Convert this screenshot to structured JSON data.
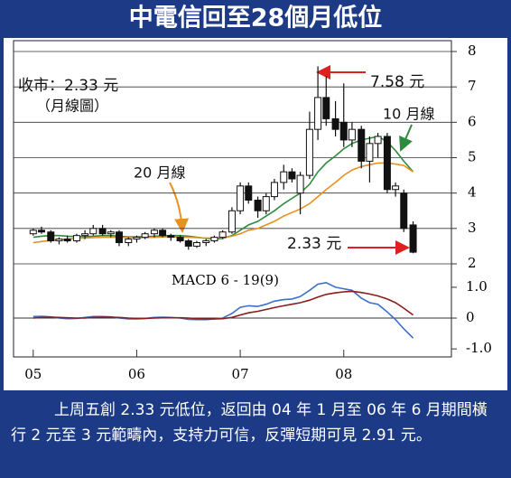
{
  "title": "中電信回至28個月低位",
  "chart_data": [
    {
      "type": "candlestick",
      "annotations": [
        "收市：2.33 元",
        "（月線圖）",
        "7.58 元",
        "10 月線",
        "20 月線",
        "2.33 元"
      ],
      "x": [
        2005,
        2005.08,
        2005.17,
        2005.25,
        2005.33,
        2005.42,
        2005.5,
        2005.58,
        2005.67,
        2005.75,
        2005.83,
        2005.92,
        2006,
        2006.08,
        2006.17,
        2006.25,
        2006.33,
        2006.42,
        2006.5,
        2006.58,
        2006.67,
        2006.75,
        2006.83,
        2006.92,
        2007,
        2007.08,
        2007.17,
        2007.25,
        2007.33,
        2007.42,
        2007.5,
        2007.58,
        2007.67,
        2007.75,
        2007.83,
        2007.92,
        2008,
        2008.08,
        2008.17,
        2008.25,
        2008.33,
        2008.42,
        2008.5,
        2008.58,
        2008.67
      ],
      "open": [
        2.85,
        2.95,
        2.9,
        2.65,
        2.7,
        2.65,
        2.8,
        2.85,
        3.0,
        2.85,
        2.9,
        2.6,
        2.7,
        2.75,
        2.85,
        2.95,
        2.8,
        2.75,
        2.65,
        2.5,
        2.6,
        2.65,
        2.75,
        2.9,
        3.5,
        4.2,
        3.8,
        3.5,
        3.9,
        4.3,
        4.6,
        4.0,
        4.5,
        5.8,
        6.7,
        6.1,
        6.0,
        5.5,
        5.8,
        4.9,
        5.4,
        5.6,
        4.1,
        4.0,
        3.1
      ],
      "high": [
        3.0,
        3.05,
        2.95,
        2.75,
        2.8,
        2.85,
        2.95,
        3.1,
        3.1,
        2.95,
        2.95,
        2.75,
        2.8,
        2.9,
        3.0,
        3.0,
        2.85,
        2.8,
        2.7,
        2.65,
        2.7,
        2.8,
        2.95,
        3.6,
        4.3,
        4.3,
        3.9,
        4.0,
        4.4,
        4.8,
        4.7,
        4.6,
        6.3,
        7.58,
        7.3,
        6.6,
        7.1,
        6.0,
        5.9,
        5.6,
        5.7,
        5.7,
        4.3,
        4.1,
        3.2
      ],
      "low": [
        2.8,
        2.85,
        2.6,
        2.55,
        2.6,
        2.6,
        2.7,
        2.8,
        2.8,
        2.75,
        2.5,
        2.5,
        2.6,
        2.7,
        2.75,
        2.75,
        2.65,
        2.6,
        2.4,
        2.45,
        2.5,
        2.6,
        2.7,
        2.85,
        3.4,
        3.7,
        3.3,
        3.4,
        3.8,
        4.1,
        4.3,
        3.4,
        4.4,
        5.5,
        5.9,
        5.6,
        5.3,
        5.3,
        4.7,
        4.3,
        5.0,
        4.0,
        3.9,
        2.9,
        2.3
      ],
      "close": [
        2.95,
        2.9,
        2.65,
        2.7,
        2.65,
        2.8,
        2.85,
        3.0,
        2.85,
        2.9,
        2.6,
        2.7,
        2.75,
        2.85,
        2.95,
        2.8,
        2.75,
        2.65,
        2.5,
        2.6,
        2.65,
        2.75,
        2.9,
        3.5,
        4.2,
        3.8,
        3.5,
        3.9,
        4.3,
        4.6,
        4.4,
        4.5,
        5.8,
        6.7,
        6.1,
        5.8,
        5.5,
        5.8,
        4.9,
        5.4,
        5.6,
        4.1,
        4.2,
        3.0,
        2.33
      ],
      "series": [
        {
          "name": "10 月線",
          "color": "#2e8b3e",
          "values": [
            2.75,
            2.78,
            2.8,
            2.8,
            2.78,
            2.77,
            2.77,
            2.78,
            2.8,
            2.8,
            2.78,
            2.76,
            2.76,
            2.77,
            2.78,
            2.79,
            2.8,
            2.8,
            2.78,
            2.75,
            2.72,
            2.7,
            2.72,
            2.8,
            2.95,
            3.1,
            3.2,
            3.35,
            3.5,
            3.7,
            3.85,
            4.0,
            4.25,
            4.6,
            4.85,
            5.05,
            5.25,
            5.4,
            5.5,
            5.55,
            5.6,
            5.45,
            5.2,
            4.9,
            4.6
          ]
        },
        {
          "name": "20 月線",
          "color": "#e8901e",
          "values": [
            2.6,
            2.63,
            2.66,
            2.68,
            2.7,
            2.72,
            2.73,
            2.74,
            2.75,
            2.75,
            2.75,
            2.74,
            2.74,
            2.74,
            2.75,
            2.76,
            2.76,
            2.76,
            2.75,
            2.74,
            2.73,
            2.73,
            2.74,
            2.78,
            2.85,
            2.95,
            3.0,
            3.1,
            3.2,
            3.35,
            3.45,
            3.55,
            3.7,
            3.9,
            4.1,
            4.3,
            4.5,
            4.65,
            4.75,
            4.8,
            4.85,
            4.85,
            4.82,
            4.78,
            4.6
          ]
        }
      ],
      "xlim": [
        2004.81,
        2009.04
      ],
      "ylim": [
        2,
        8
      ],
      "yticks": [
        2,
        3,
        4,
        5,
        6,
        7,
        8
      ],
      "grid": true
    },
    {
      "type": "line",
      "title": "MACD 6 - 19(9)",
      "x": [
        2005,
        2005.08,
        2005.17,
        2005.25,
        2005.33,
        2005.42,
        2005.5,
        2005.58,
        2005.67,
        2005.75,
        2005.83,
        2005.92,
        2006,
        2006.08,
        2006.17,
        2006.25,
        2006.33,
        2006.42,
        2006.5,
        2006.58,
        2006.67,
        2006.75,
        2006.83,
        2006.92,
        2007,
        2007.08,
        2007.17,
        2007.25,
        2007.33,
        2007.42,
        2007.5,
        2007.58,
        2007.67,
        2007.75,
        2007.83,
        2007.92,
        2008,
        2008.08,
        2008.17,
        2008.25,
        2008.33,
        2008.42,
        2008.5,
        2008.58,
        2008.67
      ],
      "series": [
        {
          "color": "#3b6fc9",
          "values": [
            0.05,
            0.06,
            0.04,
            0.0,
            -0.02,
            -0.01,
            0.02,
            0.05,
            0.05,
            0.04,
            0.0,
            -0.03,
            -0.03,
            -0.01,
            0.02,
            0.03,
            0.02,
            0.0,
            -0.04,
            -0.05,
            -0.05,
            -0.03,
            0.0,
            0.15,
            0.35,
            0.4,
            0.38,
            0.45,
            0.55,
            0.6,
            0.62,
            0.7,
            0.9,
            1.1,
            1.15,
            1.0,
            0.95,
            0.9,
            0.65,
            0.5,
            0.45,
            0.2,
            -0.05,
            -0.35,
            -0.65
          ]
        },
        {
          "color": "#8b1c1c",
          "values": [
            0.0,
            0.02,
            0.03,
            0.02,
            0.01,
            0.0,
            0.0,
            0.02,
            0.03,
            0.03,
            0.02,
            0.0,
            -0.01,
            -0.01,
            0.0,
            0.01,
            0.01,
            0.01,
            0.0,
            -0.02,
            -0.03,
            -0.03,
            -0.02,
            0.02,
            0.1,
            0.17,
            0.22,
            0.28,
            0.34,
            0.4,
            0.45,
            0.5,
            0.58,
            0.68,
            0.77,
            0.82,
            0.85,
            0.87,
            0.83,
            0.78,
            0.72,
            0.62,
            0.5,
            0.32,
            0.1
          ]
        }
      ],
      "xlim": [
        2004.81,
        2009.04
      ],
      "xticks": [
        {
          "value": 2005,
          "label": "05"
        },
        {
          "value": 2006,
          "label": "06"
        },
        {
          "value": 2007,
          "label": "07"
        },
        {
          "value": 2008,
          "label": "08"
        }
      ],
      "ylim": [
        -1.26,
        1.76
      ],
      "yticks": [
        {
          "value": 1,
          "label": "1.0"
        },
        0,
        {
          "value": -1,
          "label": "-1.0"
        }
      ]
    }
  ],
  "caption": "上周五創 2.33 元低位，返回由 04 年 1 月至 06 年 6 月期間橫行 2 元至 3 元範疇內，支持力可信，反彈短期可見 2.91 元。"
}
